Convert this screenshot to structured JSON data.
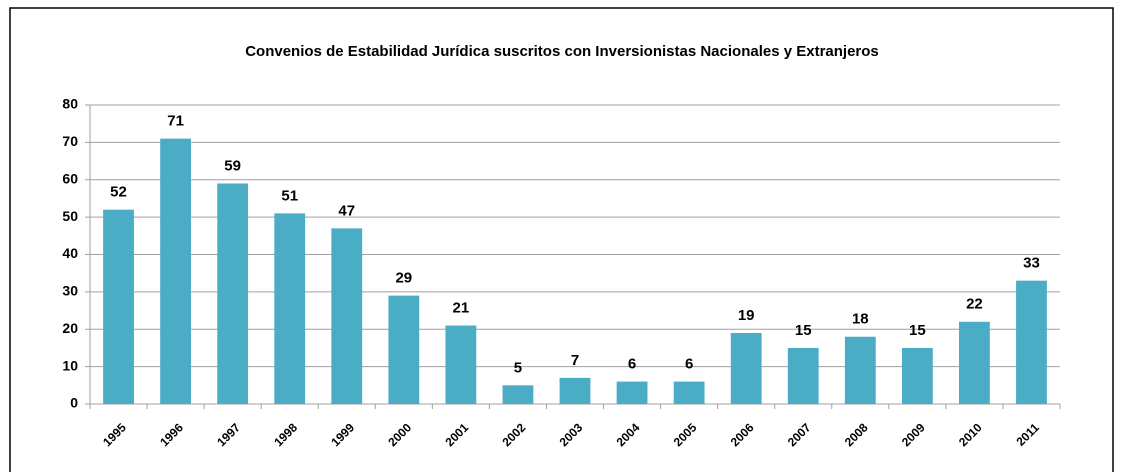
{
  "chart_data": {
    "type": "bar",
    "title": "Convenios de Estabilidad Jurídica suscritos con Inversionistas Nacionales y Extranjeros",
    "categories": [
      "1995",
      "1996",
      "1997",
      "1998",
      "1999",
      "2000",
      "2001",
      "2002",
      "2003",
      "2004",
      "2005",
      "2006",
      "2007",
      "2008",
      "2009",
      "2010",
      "2011"
    ],
    "values": [
      52,
      71,
      59,
      51,
      47,
      29,
      21,
      5,
      7,
      6,
      6,
      19,
      15,
      18,
      15,
      22,
      33
    ],
    "color": "#4bacc6",
    "ylim": [
      0,
      80
    ],
    "yticks": [
      0,
      10,
      20,
      30,
      40,
      50,
      60,
      70,
      80
    ],
    "grid": true
  }
}
